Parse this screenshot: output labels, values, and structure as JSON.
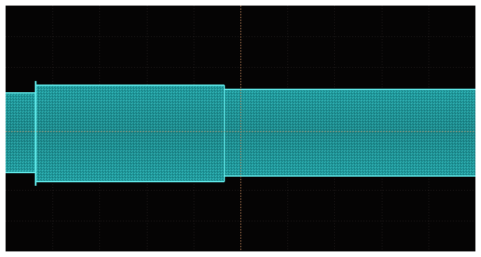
{
  "screen": {
    "background_color": "#050404",
    "grid_color": "#2a2424",
    "trace_color": "#2fc3c3",
    "trace_edge_color": "#5fe8e8",
    "reference_line_color": "#d49060",
    "grid_divisions": {
      "horizontal": 10,
      "vertical": 8
    },
    "trace": {
      "segments": [
        {
          "id": "seg-1",
          "relative_amplitude": 0.9
        },
        {
          "id": "seg-2",
          "relative_amplitude": 1.05
        },
        {
          "id": "seg-3",
          "relative_amplitude": 0.95
        }
      ]
    }
  }
}
